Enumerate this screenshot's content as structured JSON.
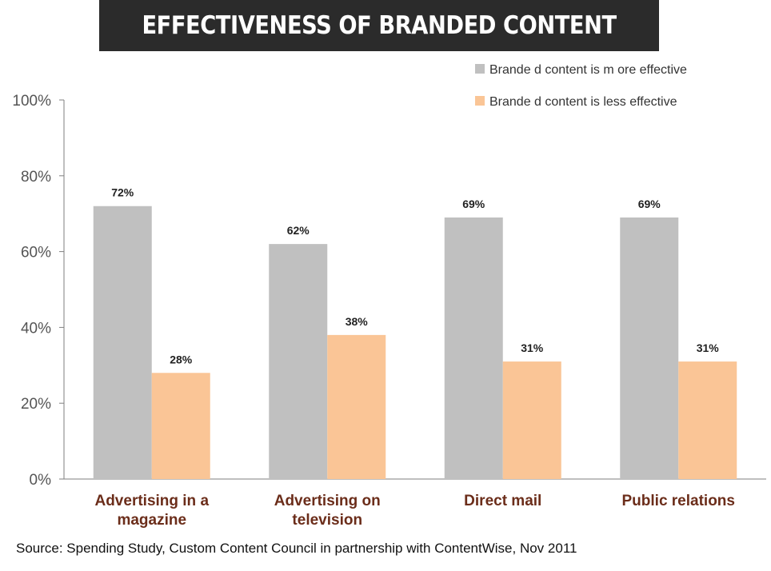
{
  "title": "EFFECTIVENESS OF BRANDED CONTENT",
  "source": "Source: Spending Study, Custom Content Council in partnership with ContentWise, Nov 2011",
  "colors": {
    "more": "#c0c0c0",
    "less": "#fac596",
    "category_text": "#6b2d1a",
    "axis_text": "#555555",
    "title_bg": "#2b2b2b"
  },
  "chart_data": {
    "type": "bar",
    "categories": [
      [
        "Advertising in a",
        "magazine"
      ],
      [
        "Advertising on",
        "television"
      ],
      [
        "Direct mail"
      ],
      [
        "Public relations"
      ]
    ],
    "series": [
      {
        "name": "Brande d content is m ore effective",
        "values": [
          72,
          62,
          69,
          69
        ],
        "labels": [
          "72%",
          "62%",
          "69%",
          "69%"
        ]
      },
      {
        "name": "Brande d content is less effective",
        "values": [
          28,
          38,
          31,
          31
        ],
        "labels": [
          "28%",
          "38%",
          "31%",
          "31%"
        ]
      }
    ],
    "yticks": [
      "0%",
      "20%",
      "40%",
      "60%",
      "80%",
      "100%"
    ],
    "ylim": [
      0,
      100
    ],
    "grid": false,
    "legend": "top-right"
  }
}
